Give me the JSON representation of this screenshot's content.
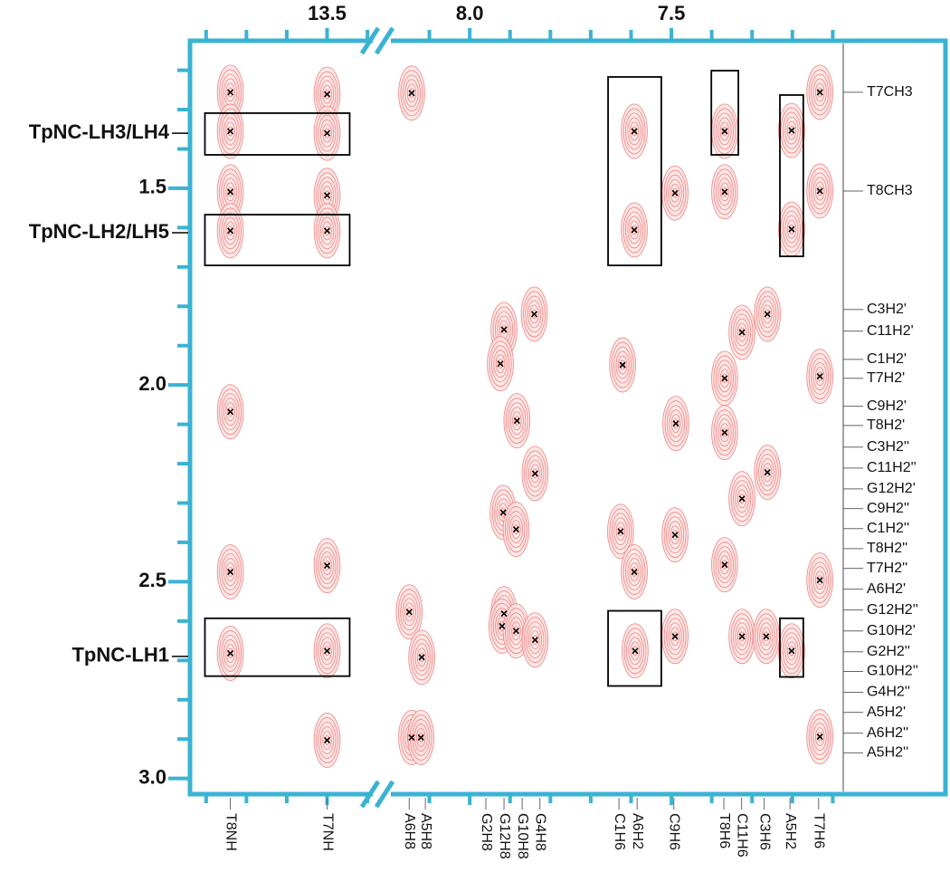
{
  "chart_data": {
    "type": "nmr",
    "frame_color": "#3ab3d3",
    "contour_color": "#ee7a78",
    "xsegments": [
      {
        "xlim": [
          13.84,
          13.38
        ],
        "xticks": [
          13.5
        ],
        "xminor": [
          13.8,
          13.7,
          13.6,
          13.4
        ]
      },
      {
        "xlim": [
          8.2,
          7.074
        ],
        "xticks": [
          {
            "value": 8.0,
            "label": "8.0"
          },
          7.5
        ],
        "xminor": [
          8.1,
          7.9,
          7.8,
          7.7,
          7.6,
          7.4,
          7.3,
          7.2,
          7.1
        ]
      }
    ],
    "ylim": [
      1.125,
      3.04
    ],
    "yticks": [
      1.5,
      {
        "value": 2.0,
        "label": "2.0"
      },
      2.5,
      {
        "value": 3.0,
        "label": "3.0"
      }
    ],
    "yminor": [
      1.2,
      1.3,
      1.4,
      1.6,
      1.7,
      1.8,
      1.9,
      2.1,
      2.2,
      2.3,
      2.4,
      2.6,
      2.7,
      2.8,
      2.9
    ],
    "left_labels": [
      {
        "label": "TpNC-LH3/LH4",
        "y": 1.36
      },
      {
        "label": "TpNC-LH2/LH5",
        "y": 1.613
      },
      {
        "label": "TpNC-LH1",
        "y": 2.69
      }
    ],
    "right_labels": [
      {
        "label": "T7CH3",
        "y": 1.256
      },
      {
        "label": "T8CH3",
        "y": 1.507
      },
      {
        "label": "C3H2'",
        "y": 1.808
      },
      {
        "label": "C11H2'",
        "y": 1.863
      },
      {
        "label": "C1H2'",
        "y": 1.935
      },
      {
        "label": "T7H2'",
        "y": 1.983
      },
      {
        "label": "C9H2'",
        "y": 2.054
      },
      {
        "label": "T8H2'",
        "y": 2.103
      },
      {
        "label": "C3H2''",
        "y": 2.158
      },
      {
        "label": "C11H2''",
        "y": 2.211
      },
      {
        "label": "G12H2'",
        "y": 2.264
      },
      {
        "label": "C9H2''",
        "y": 2.314
      },
      {
        "label": "C1H2''",
        "y": 2.365
      },
      {
        "label": "T8H2''",
        "y": 2.416
      },
      {
        "label": "T7H2''",
        "y": 2.466
      },
      {
        "label": "A6H2'",
        "y": 2.519
      },
      {
        "label": "G12H2''",
        "y": 2.572
      },
      {
        "label": "G10H2'",
        "y": 2.625
      },
      {
        "label": "G2H2''",
        "y": 2.678
      },
      {
        "label": "G10H2''",
        "y": 2.728
      },
      {
        "label": "G4H2''",
        "y": 2.781
      },
      {
        "label": "A5H2'",
        "y": 2.832
      },
      {
        "label": "A6H2''",
        "y": 2.885
      },
      {
        "label": "A5H2''",
        "y": 2.935
      }
    ],
    "bottom_labels": [
      {
        "label": "T8NH",
        "x": 13.74
      },
      {
        "label": "T7NH",
        "x": 13.5
      },
      {
        "label": "A6H8",
        "x": 8.15
      },
      {
        "label": "A5H8",
        "x": 8.11
      },
      {
        "label": "G2H8",
        "x": 7.96
      },
      {
        "label": "G12H8",
        "x": 7.915
      },
      {
        "label": "G10H8",
        "x": 7.87
      },
      {
        "label": "G4H8",
        "x": 7.826
      },
      {
        "label": "C1H6",
        "x": 7.63
      },
      {
        "label": "A6H2",
        "x": 7.585
      },
      {
        "label": "C9H6",
        "x": 7.494
      },
      {
        "label": "T8H6",
        "x": 7.37
      },
      {
        "label": "C11H6",
        "x": 7.326
      },
      {
        "label": "C3H6",
        "x": 7.27
      },
      {
        "label": "A5H2",
        "x": 7.206
      },
      {
        "label": "T7H6",
        "x": 7.135
      }
    ],
    "peaks": [
      {
        "x": 13.74,
        "y": 1.256
      },
      {
        "x": 13.74,
        "y": 1.355
      },
      {
        "x": 13.74,
        "y": 1.509
      },
      {
        "x": 13.74,
        "y": 1.608
      },
      {
        "x": 13.74,
        "y": 2.682
      },
      {
        "x": 13.74,
        "y": 2.068
      },
      {
        "x": 13.74,
        "y": 2.475
      },
      {
        "x": 13.5,
        "y": 1.261
      },
      {
        "x": 13.5,
        "y": 1.36
      },
      {
        "x": 13.5,
        "y": 1.518
      },
      {
        "x": 13.5,
        "y": 1.608
      },
      {
        "x": 13.5,
        "y": 2.676
      },
      {
        "x": 13.5,
        "y": 2.459
      },
      {
        "x": 13.5,
        "y": 2.903
      },
      {
        "x": 8.144,
        "y": 1.258
      },
      {
        "x": 8.15,
        "y": 2.577
      },
      {
        "x": 8.119,
        "y": 2.692
      },
      {
        "x": 8.144,
        "y": 2.896
      },
      {
        "x": 8.121,
        "y": 2.896
      },
      {
        "x": 7.915,
        "y": 1.859
      },
      {
        "x": 7.924,
        "y": 1.946
      },
      {
        "x": 7.883,
        "y": 2.091
      },
      {
        "x": 7.84,
        "y": 1.82
      },
      {
        "x": 7.838,
        "y": 2.225
      },
      {
        "x": 7.917,
        "y": 2.324
      },
      {
        "x": 7.885,
        "y": 2.367
      },
      {
        "x": 7.915,
        "y": 2.581
      },
      {
        "x": 7.92,
        "y": 2.613
      },
      {
        "x": 7.885,
        "y": 2.625
      },
      {
        "x": 7.838,
        "y": 2.648
      },
      {
        "x": 7.621,
        "y": 1.949
      },
      {
        "x": 7.626,
        "y": 2.372
      },
      {
        "x": 7.592,
        "y": 1.355
      },
      {
        "x": 7.592,
        "y": 1.606
      },
      {
        "x": 7.592,
        "y": 2.475
      },
      {
        "x": 7.59,
        "y": 2.676
      },
      {
        "x": 7.491,
        "y": 1.512
      },
      {
        "x": 7.489,
        "y": 2.098
      },
      {
        "x": 7.491,
        "y": 2.381
      },
      {
        "x": 7.491,
        "y": 2.639
      },
      {
        "x": 7.368,
        "y": 1.355
      },
      {
        "x": 7.368,
        "y": 1.509
      },
      {
        "x": 7.368,
        "y": 1.983
      },
      {
        "x": 7.368,
        "y": 2.121
      },
      {
        "x": 7.368,
        "y": 2.457
      },
      {
        "x": 7.325,
        "y": 1.866
      },
      {
        "x": 7.325,
        "y": 2.289
      },
      {
        "x": 7.325,
        "y": 2.639
      },
      {
        "x": 7.262,
        "y": 1.82
      },
      {
        "x": 7.262,
        "y": 2.222
      },
      {
        "x": 7.265,
        "y": 2.639
      },
      {
        "x": 7.202,
        "y": 1.353
      },
      {
        "x": 7.202,
        "y": 1.604
      },
      {
        "x": 7.202,
        "y": 2.676
      },
      {
        "x": 7.132,
        "y": 1.256
      },
      {
        "x": 7.132,
        "y": 1.507
      },
      {
        "x": 7.132,
        "y": 1.978
      },
      {
        "x": 7.132,
        "y": 2.496
      },
      {
        "x": 7.132,
        "y": 2.894
      }
    ],
    "boxes": [
      {
        "x": [
          13.803,
          13.444
        ],
        "y": [
          1.309,
          1.415
        ]
      },
      {
        "x": [
          13.803,
          13.444
        ],
        "y": [
          1.567,
          1.696
        ]
      },
      {
        "x": [
          13.803,
          13.444
        ],
        "y": [
          2.593,
          2.74
        ]
      },
      {
        "x": [
          7.657,
          7.525
        ],
        "y": [
          1.217,
          1.696
        ]
      },
      {
        "x": [
          7.401,
          7.334
        ],
        "y": [
          1.201,
          1.415
        ]
      },
      {
        "x": [
          7.231,
          7.173
        ],
        "y": [
          1.263,
          1.673
        ]
      },
      {
        "x": [
          7.657,
          7.525
        ],
        "y": [
          2.574,
          2.765
        ]
      },
      {
        "x": [
          7.231,
          7.173
        ],
        "y": [
          2.593,
          2.742
        ]
      }
    ]
  }
}
